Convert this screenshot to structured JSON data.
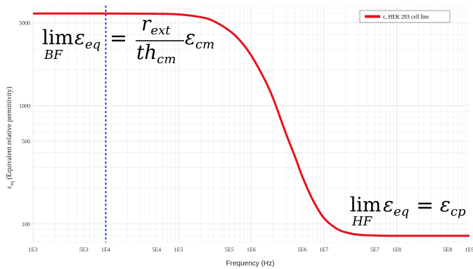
{
  "chart_data": {
    "type": "line",
    "xlabel": "Frequency (Hz)",
    "ylabel": "ε_eq (Equivalent relative permittivity)",
    "ylabel_symbol": "ε",
    "ylabel_sub": "eq",
    "ylabel_rest": " (Equivalent relative permittivity)",
    "x_scale": "log",
    "y_scale": "log",
    "xlim": [
      1000,
      1000000000
    ],
    "ylim": [
      70,
      7000
    ],
    "x_ticks": [
      {
        "value": 1000,
        "label": "1E3"
      },
      {
        "value": 5000,
        "label": "5E3"
      },
      {
        "value": 10000,
        "label": "1E4"
      },
      {
        "value": 50000,
        "label": "5E4"
      },
      {
        "value": 100000,
        "label": "1E5"
      },
      {
        "value": 500000,
        "label": "5E5"
      },
      {
        "value": 1000000,
        "label": "1E6"
      },
      {
        "value": 5000000,
        "label": "5E6"
      },
      {
        "value": 10000000,
        "label": "1E7"
      },
      {
        "value": 50000000,
        "label": "5E7"
      },
      {
        "value": 100000000,
        "label": "1E8"
      },
      {
        "value": 500000000,
        "label": "5E8"
      },
      {
        "value": 1000000000,
        "label": "1E9"
      }
    ],
    "y_ticks": [
      {
        "value": 100,
        "label": "100"
      },
      {
        "value": 500,
        "label": "500"
      },
      {
        "value": 1000,
        "label": "1000"
      },
      {
        "value": 5000,
        "label": "5000"
      }
    ],
    "grid": true,
    "legend_position": "top-right",
    "series": [
      {
        "name": "ε, HEK 293 cell line",
        "color": "#e8121a",
        "x": [
          1000,
          10000,
          50000,
          100000,
          200000,
          300000,
          500000,
          700000,
          1000000,
          1500000,
          2000000,
          3000000,
          4000000,
          5000000,
          7000000,
          10000000,
          15000000,
          20000000,
          30000000,
          50000000,
          100000000,
          1000000000
        ],
        "y": [
          6000,
          6000,
          5970,
          5900,
          5600,
          5200,
          4300,
          3550,
          2650,
          1700,
          1150,
          580,
          370,
          255,
          160,
          112,
          91,
          85,
          81,
          80,
          79.5,
          79.5
        ]
      }
    ],
    "reference_line": {
      "x": 10000,
      "color": "#1a44d8",
      "style": "dashed"
    }
  },
  "annotations": {
    "low_freq": {
      "lim": "lim",
      "sub": "BF",
      "lhs": "ε",
      "lhs_sub": "eq",
      "equals": "=",
      "num": "r",
      "num_sub": "ext",
      "den": "th",
      "den_sub": "cm",
      "rhs": "ε",
      "rhs_sub": "cm"
    },
    "high_freq": {
      "lim": "lim",
      "sub": "HF",
      "lhs": "ε",
      "lhs_sub": "eq",
      "equals": "=",
      "rhs": "ε",
      "rhs_sub": "cp"
    }
  }
}
